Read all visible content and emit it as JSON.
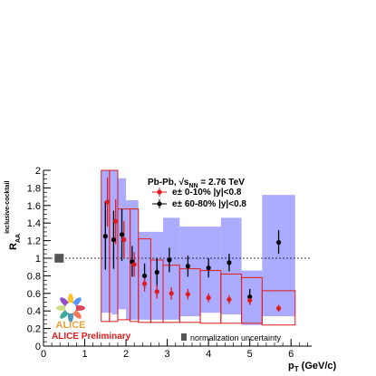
{
  "chart_data": {
    "type": "scatter",
    "xlabel": "p_T (GeV/c)",
    "ylabel": "R_AA^inclusive-cocktail",
    "xlim": [
      0,
      6.5
    ],
    "ylim": [
      0,
      2
    ],
    "x_ticks": [
      0,
      1,
      2,
      3,
      4,
      5,
      6
    ],
    "y_ticks": [
      0,
      0.2,
      0.4,
      0.6,
      0.8,
      1,
      1.2,
      1.4,
      1.6,
      1.8,
      2
    ],
    "reference_line": 1,
    "grid": false,
    "legend_placement": "top-right",
    "legend_title": "Pb-Pb, √s_NN = 2.76 TeV",
    "annotations": {
      "preliminary": "ALICE Preliminary",
      "normalization": "normalization uncertainty",
      "logo_text": "ALICE"
    },
    "normalization_box": {
      "x": 0.38,
      "ylow": 0.95,
      "yhigh": 1.05
    },
    "series": [
      {
        "name": "e± 0-10%  |y|<0.8",
        "color": "#e31a1c",
        "marker": "circle",
        "syst_style": "red-open-box",
        "points": [
          {
            "x": 1.55,
            "y": 1.64,
            "ylow": 1.36,
            "yhigh": 1.92,
            "sys_low": 0.28,
            "sys_high": 2.0,
            "bin": [
              1.4,
              1.6
            ]
          },
          {
            "x": 1.75,
            "y": 1.42,
            "ylow": 1.16,
            "yhigh": 1.67,
            "sys_low": 0.28,
            "sys_high": 2.0,
            "bin": [
              1.6,
              1.8
            ]
          },
          {
            "x": 1.95,
            "y": 1.21,
            "ylow": 1.0,
            "yhigh": 1.42,
            "sys_low": 0.3,
            "sys_high": 1.56,
            "bin": [
              1.8,
              2.1
            ]
          },
          {
            "x": 2.2,
            "y": 0.93,
            "ylow": 0.79,
            "yhigh": 1.07,
            "sys_low": 0.28,
            "sys_high": 1.56,
            "bin": [
              2.1,
              2.3
            ]
          },
          {
            "x": 2.45,
            "y": 0.71,
            "ylow": 0.62,
            "yhigh": 0.8,
            "sys_low": 0.27,
            "sys_high": 1.22,
            "bin": [
              2.3,
              2.6
            ]
          },
          {
            "x": 2.75,
            "y": 0.62,
            "ylow": 0.54,
            "yhigh": 0.7,
            "sys_low": 0.27,
            "sys_high": 0.98,
            "bin": [
              2.6,
              2.9
            ]
          },
          {
            "x": 3.1,
            "y": 0.6,
            "ylow": 0.53,
            "yhigh": 0.67,
            "sys_low": 0.27,
            "sys_high": 0.92,
            "bin": [
              2.9,
              3.3
            ]
          },
          {
            "x": 3.5,
            "y": 0.59,
            "ylow": 0.53,
            "yhigh": 0.65,
            "sys_low": 0.27,
            "sys_high": 0.88,
            "bin": [
              3.3,
              3.8
            ]
          },
          {
            "x": 4.0,
            "y": 0.55,
            "ylow": 0.5,
            "yhigh": 0.6,
            "sys_low": 0.26,
            "sys_high": 0.86,
            "bin": [
              3.8,
              4.3
            ]
          },
          {
            "x": 4.5,
            "y": 0.53,
            "ylow": 0.48,
            "yhigh": 0.58,
            "sys_low": 0.26,
            "sys_high": 0.82,
            "bin": [
              4.3,
              4.8
            ]
          },
          {
            "x": 5.0,
            "y": 0.52,
            "ylow": 0.47,
            "yhigh": 0.57,
            "sys_low": 0.26,
            "sys_high": 0.78,
            "bin": [
              4.8,
              5.3
            ]
          },
          {
            "x": 5.7,
            "y": 0.43,
            "ylow": 0.39,
            "yhigh": 0.47,
            "sys_low": 0.24,
            "sys_high": 0.63,
            "bin": [
              5.3,
              6.1
            ]
          }
        ]
      },
      {
        "name": "e± 60-80%  |y|<0.8",
        "color": "#000000",
        "marker": "circle",
        "syst_style": "blue-filled-band",
        "band_color": "#8f8fff",
        "points": [
          {
            "x": 1.5,
            "y": 1.25,
            "ylow": 0.87,
            "yhigh": 1.65,
            "sys_low": 0.38,
            "sys_high": 2.0,
            "bin": [
              1.4,
              1.65
            ]
          },
          {
            "x": 1.7,
            "y": 1.21,
            "ylow": 0.88,
            "yhigh": 1.54,
            "sys_low": 0.36,
            "sys_high": 2.0,
            "bin": [
              1.65,
              1.8
            ]
          },
          {
            "x": 1.9,
            "y": 1.27,
            "ylow": 0.97,
            "yhigh": 1.56,
            "sys_low": 0.42,
            "sys_high": 1.91,
            "bin": [
              1.8,
              2.0
            ]
          },
          {
            "x": 2.15,
            "y": 0.96,
            "ylow": 0.79,
            "yhigh": 1.14,
            "sys_low": 0.3,
            "sys_high": 1.66,
            "bin": [
              2.0,
              2.3
            ]
          },
          {
            "x": 2.45,
            "y": 0.8,
            "ylow": 0.66,
            "yhigh": 0.94,
            "sys_low": 0.3,
            "sys_high": 1.3,
            "bin": [
              2.3,
              2.6
            ]
          },
          {
            "x": 2.75,
            "y": 0.84,
            "ylow": 0.68,
            "yhigh": 1.0,
            "sys_low": 0.3,
            "sys_high": 1.3,
            "bin": [
              2.6,
              2.9
            ]
          },
          {
            "x": 3.05,
            "y": 0.98,
            "ylow": 0.84,
            "yhigh": 1.12,
            "sys_low": 0.3,
            "sys_high": 1.46,
            "bin": [
              2.9,
              3.3
            ]
          },
          {
            "x": 3.5,
            "y": 0.91,
            "ylow": 0.79,
            "yhigh": 1.03,
            "sys_low": 0.34,
            "sys_high": 1.36,
            "bin": [
              3.3,
              3.8
            ]
          },
          {
            "x": 4.0,
            "y": 0.89,
            "ylow": 0.78,
            "yhigh": 1.0,
            "sys_low": 0.38,
            "sys_high": 1.36,
            "bin": [
              3.8,
              4.3
            ]
          },
          {
            "x": 4.5,
            "y": 0.95,
            "ylow": 0.85,
            "yhigh": 1.05,
            "sys_low": 0.36,
            "sys_high": 1.46,
            "bin": [
              4.3,
              4.8
            ]
          },
          {
            "x": 5.0,
            "y": 0.56,
            "ylow": 0.47,
            "yhigh": 0.65,
            "sys_low": 0.24,
            "sys_high": 0.86,
            "bin": [
              4.8,
              5.3
            ]
          },
          {
            "x": 5.7,
            "y": 1.18,
            "ylow": 1.05,
            "yhigh": 1.32,
            "sys_low": 0.34,
            "sys_high": 1.72,
            "bin": [
              5.3,
              6.1
            ]
          }
        ]
      }
    ]
  }
}
